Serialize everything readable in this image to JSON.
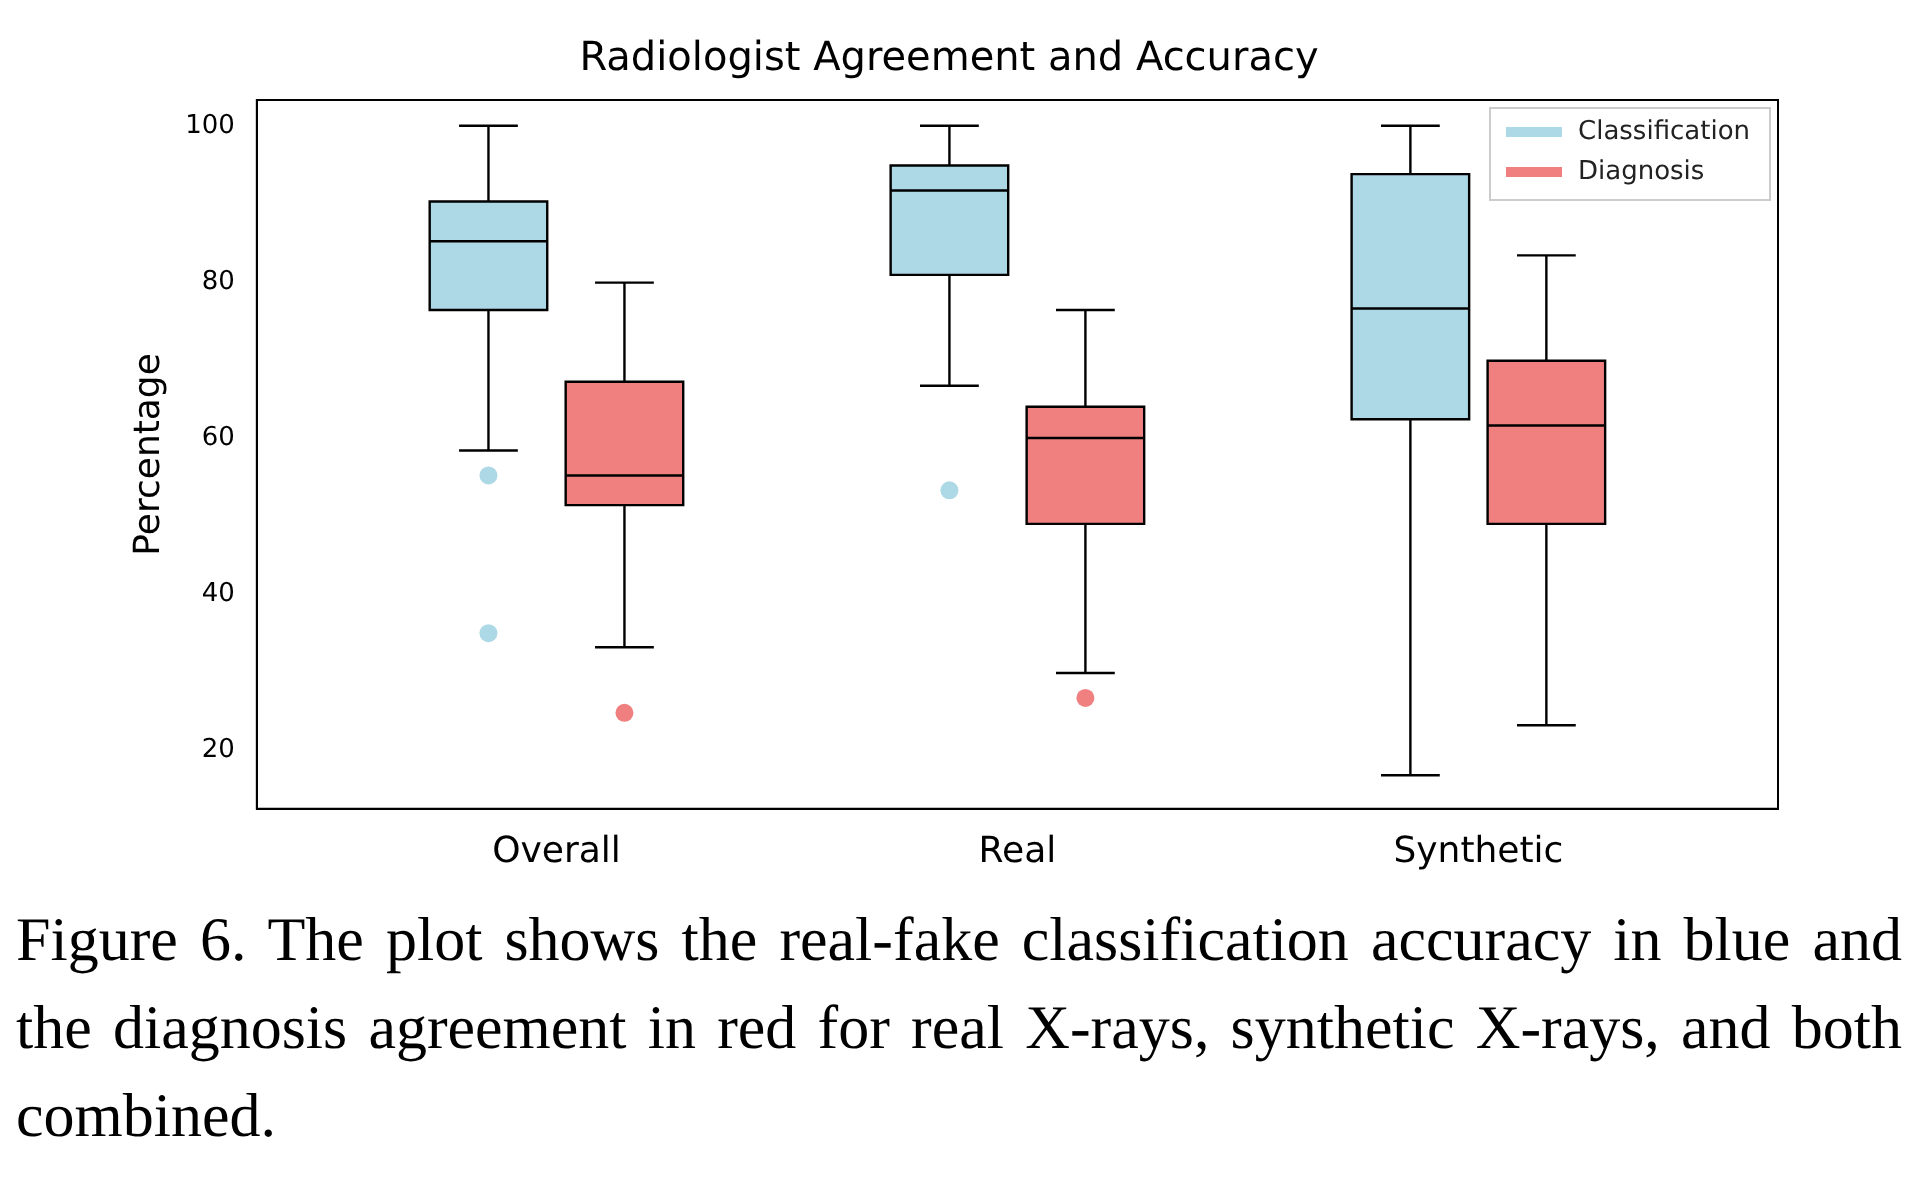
{
  "chart_data": {
    "type": "box",
    "title": "Radiologist Agreement and Accuracy",
    "ylabel": "Percentage",
    "categories": [
      "Overall",
      "Real",
      "Synthetic"
    ],
    "ylim": [
      12.5,
      103.3
    ],
    "yticks": [
      20,
      40,
      60,
      80,
      100
    ],
    "grid": false,
    "legend": "top right",
    "series": [
      {
        "name": "Classification",
        "color": "#add8e6",
        "boxes": [
          {
            "low": 58.4,
            "q1": 76.4,
            "median": 85.2,
            "q3": 90.3,
            "high": 100,
            "outliers": [
              55.2,
              35
            ]
          },
          {
            "low": 66.7,
            "q1": 80.9,
            "median": 91.7,
            "q3": 94.9,
            "high": 100,
            "outliers": [
              53.3
            ]
          },
          {
            "low": 16.8,
            "q1": 62.4,
            "median": 76.6,
            "q3": 93.8,
            "high": 100
          }
        ]
      },
      {
        "name": "Diagnosis",
        "color": "#f08080",
        "boxes": [
          {
            "low": 33.2,
            "q1": 51.4,
            "median": 55.2,
            "q3": 67.2,
            "high": 79.9,
            "outliers": [
              24.8
            ]
          },
          {
            "low": 29.9,
            "q1": 49,
            "median": 60,
            "q3": 64,
            "high": 76.4,
            "outliers": [
              26.7
            ]
          },
          {
            "low": 23.2,
            "q1": 49,
            "median": 61.6,
            "q3": 69.9,
            "high": 83.4
          }
        ]
      }
    ],
    "annotations": [
      "Figure 6.  The plot shows the real-fake classification accuracy in blue and the diagnosis agreement in red for real X-rays, synthetic X-rays, and both combined."
    ]
  }
}
